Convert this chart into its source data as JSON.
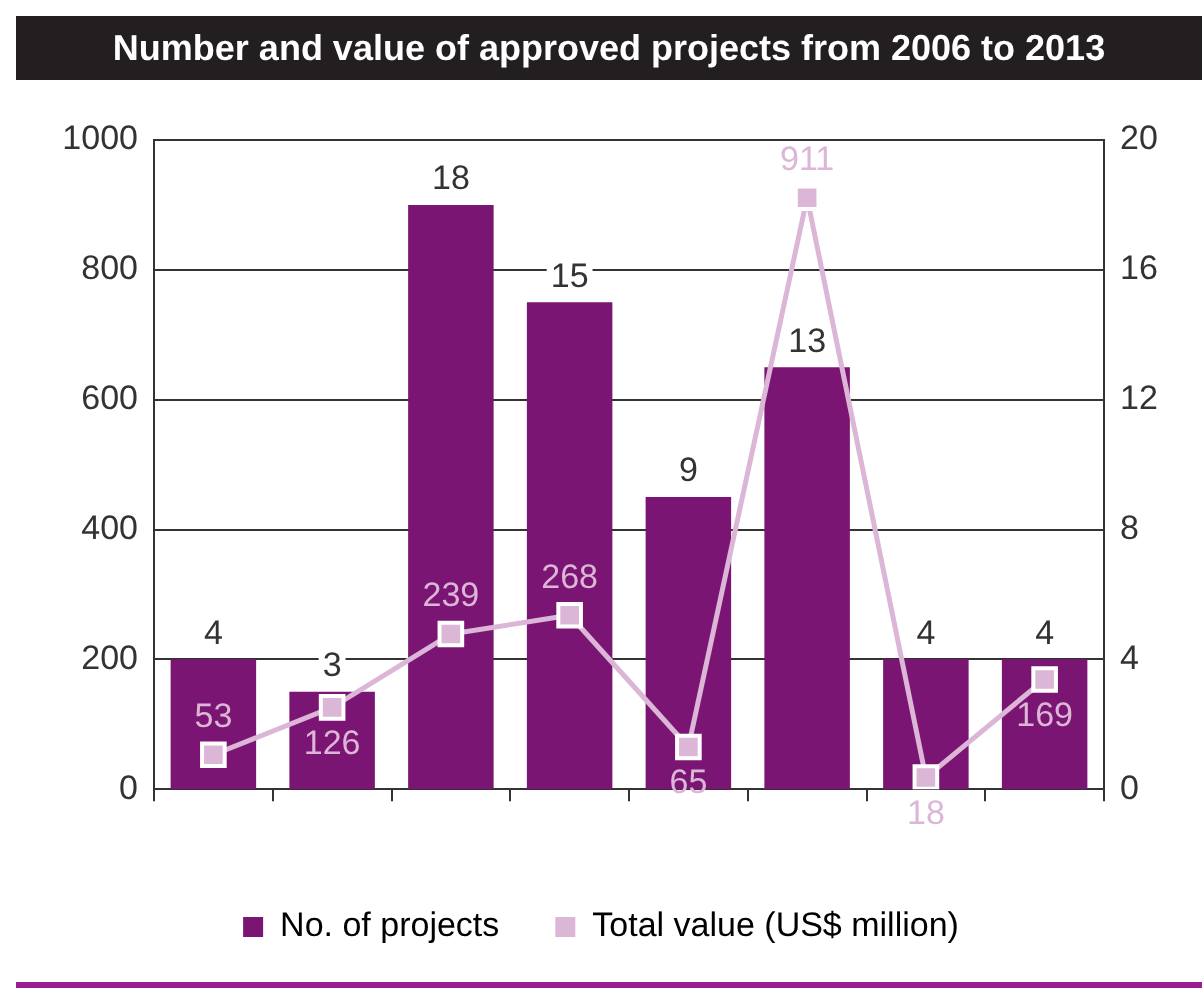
{
  "chart_data": {
    "type": "bar",
    "title": "Number and value of approved projects from 2006 to 2013",
    "categories": [
      null,
      null,
      null,
      null,
      null,
      null,
      null,
      null
    ],
    "series": [
      {
        "name": "No. of projects",
        "axis": "y2",
        "color": "#7b1574",
        "values": [
          4,
          3,
          18,
          15,
          9,
          13,
          4,
          4
        ]
      },
      {
        "name": "Total value (US$ million)",
        "type": "line",
        "axis": "y",
        "color": "#dcb6d6",
        "values": [
          53,
          126,
          239,
          268,
          65,
          911,
          18,
          169
        ]
      }
    ],
    "ylim": [
      0,
      1000
    ],
    "yticks": [
      0,
      200,
      400,
      600,
      800,
      1000
    ],
    "y2lim": [
      0,
      20
    ],
    "y2ticks": [
      0,
      4,
      8,
      12,
      16,
      20
    ],
    "grid": "y",
    "legend": "bottom",
    "data_labels": true,
    "marker": "square"
  }
}
